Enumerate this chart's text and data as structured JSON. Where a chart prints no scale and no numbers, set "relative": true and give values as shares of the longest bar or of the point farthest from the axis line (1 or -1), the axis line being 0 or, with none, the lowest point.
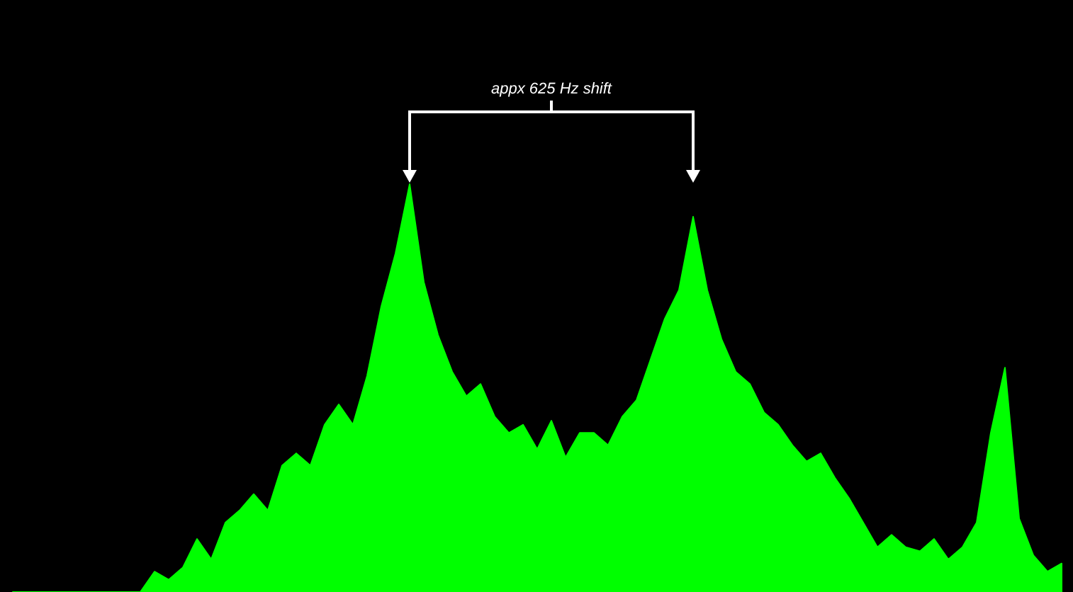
{
  "chart_data": {
    "type": "area",
    "relative": true,
    "categories": [
      null,
      null,
      null,
      null,
      null,
      null,
      null,
      null,
      null,
      null,
      null,
      null,
      null,
      null,
      null,
      null,
      null,
      null,
      null,
      null,
      null,
      null,
      null,
      null,
      null,
      null,
      null,
      null,
      null,
      null,
      null,
      null,
      null,
      null,
      null,
      null,
      null,
      null,
      null,
      null,
      null,
      null,
      null,
      null,
      null,
      null,
      null,
      null,
      null,
      null,
      null,
      null,
      null,
      null,
      null,
      null,
      null,
      null,
      null,
      null,
      null,
      null,
      null,
      null,
      null,
      null,
      null,
      null,
      null,
      null,
      null,
      null,
      null,
      null,
      null
    ],
    "series": [
      {
        "color": "#00ff00",
        "values": [
          0,
          0,
          0,
          0,
          0,
          0,
          0,
          0,
          0,
          0,
          0.05,
          0.03,
          0.06,
          0.13,
          0.08,
          0.17,
          0.2,
          0.24,
          0.2,
          0.31,
          0.34,
          0.31,
          0.41,
          0.46,
          0.41,
          0.53,
          0.7,
          0.83,
          1,
          0.76,
          0.63,
          0.54,
          0.48,
          0.51,
          0.43,
          0.39,
          0.41,
          0.35,
          0.42,
          0.33,
          0.39,
          0.39,
          0.36,
          0.43,
          0.47,
          0.57,
          0.67,
          0.74,
          0.92,
          0.74,
          0.62,
          0.54,
          0.51,
          0.44,
          0.41,
          0.36,
          0.32,
          0.34,
          0.28,
          0.23,
          0.17,
          0.11,
          0.14,
          0.11,
          0.1,
          0.13,
          0.08,
          0.11,
          0.17,
          0.39,
          0.55,
          0.18,
          0.09,
          0.05,
          0.07
        ]
      }
    ],
    "annotations": [
      "appx 625 Hz shift"
    ]
  }
}
